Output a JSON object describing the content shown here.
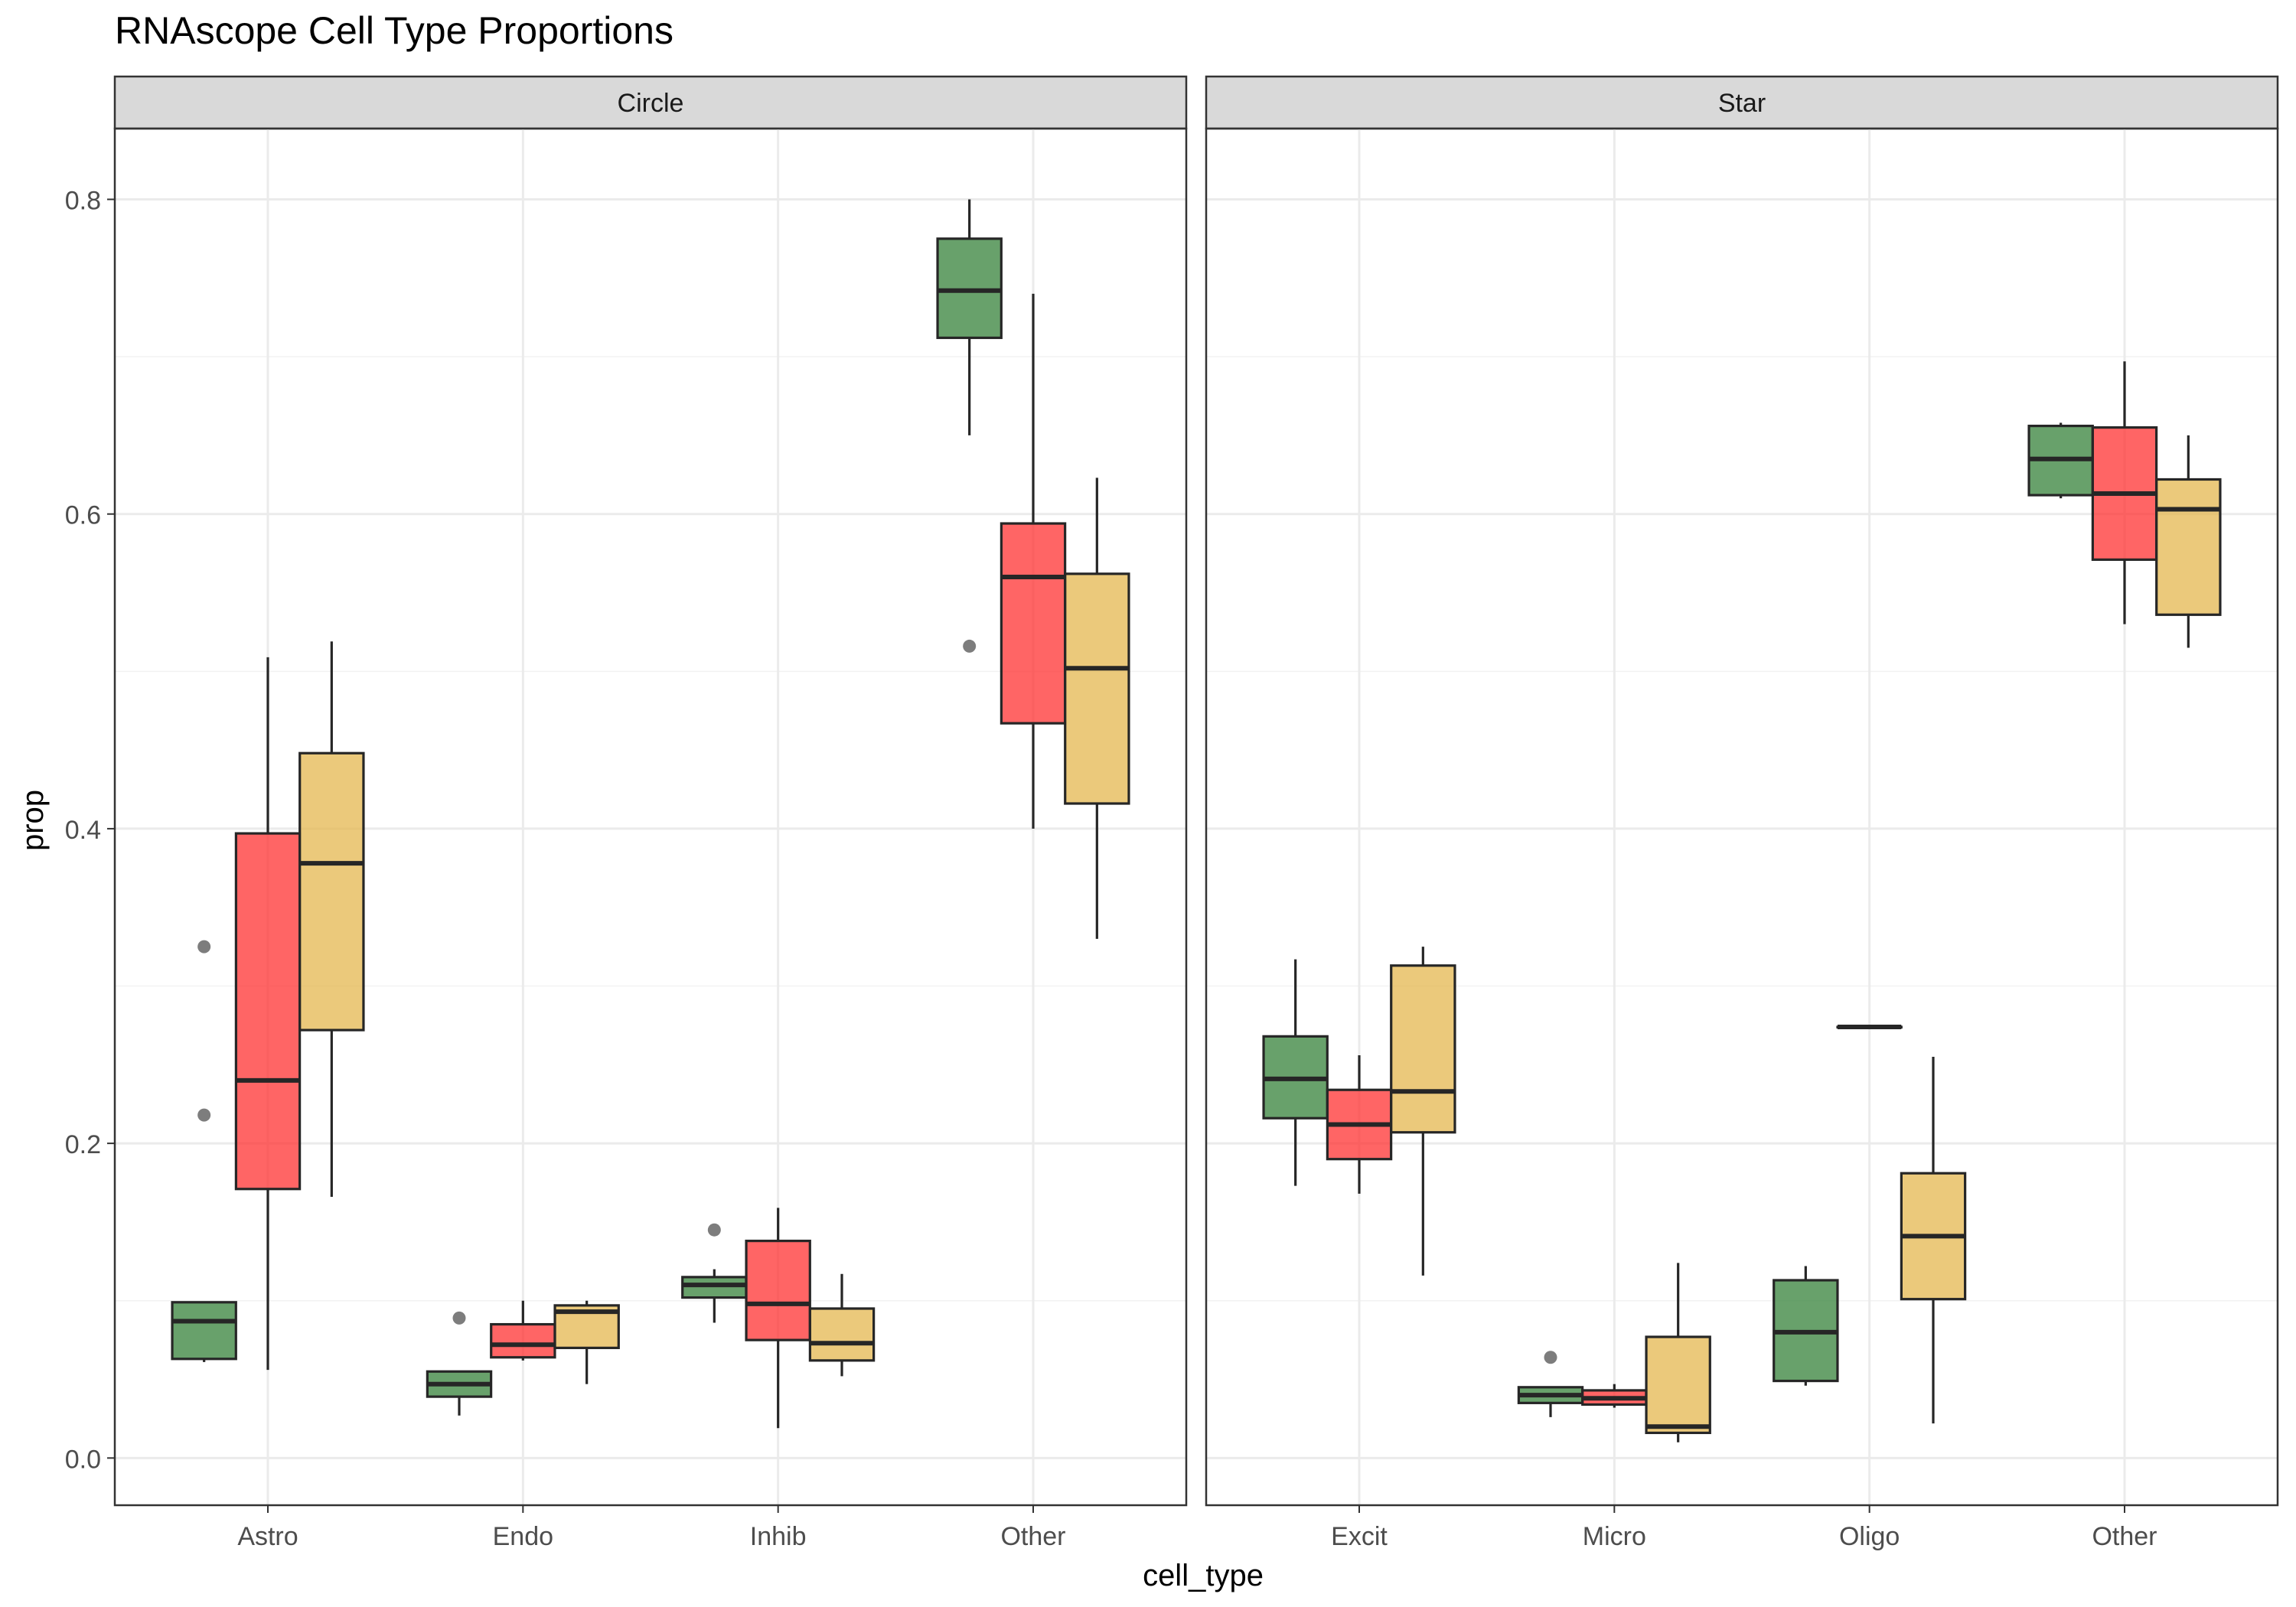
{
  "chart_data": {
    "type": "boxplot",
    "title": "RNAscope Cell Type Proportions",
    "xlabel": "cell_type",
    "ylabel": "prop",
    "ylim": [
      -0.03,
      0.845
    ],
    "y_ticks": [
      "0.0",
      "0.2",
      "0.4",
      "0.6",
      "0.8"
    ],
    "y_tick_values": [
      0.0,
      0.2,
      0.4,
      0.6,
      0.8
    ],
    "grid": true,
    "legend": "none",
    "group_colors": [
      "#2E7D32",
      "#FF2A2A",
      "#E3B448"
    ],
    "panels": [
      {
        "title": "Circle",
        "categories": [
          "Astro",
          "Endo",
          "Inhib",
          "Other"
        ],
        "boxes": [
          {
            "category": "Astro",
            "group": 0,
            "min": 0.061,
            "q1": 0.063,
            "median": 0.087,
            "q3": 0.099,
            "max": 0.099,
            "outliers": [
              0.218,
              0.325
            ]
          },
          {
            "category": "Astro",
            "group": 1,
            "min": 0.056,
            "q1": 0.171,
            "median": 0.24,
            "q3": 0.397,
            "max": 0.509,
            "outliers": []
          },
          {
            "category": "Astro",
            "group": 2,
            "min": 0.166,
            "q1": 0.272,
            "median": 0.378,
            "q3": 0.448,
            "max": 0.519,
            "outliers": []
          },
          {
            "category": "Endo",
            "group": 0,
            "min": 0.027,
            "q1": 0.039,
            "median": 0.047,
            "q3": 0.055,
            "max": 0.055,
            "outliers": [
              0.089
            ]
          },
          {
            "category": "Endo",
            "group": 1,
            "min": 0.062,
            "q1": 0.064,
            "median": 0.072,
            "q3": 0.085,
            "max": 0.1,
            "outliers": []
          },
          {
            "category": "Endo",
            "group": 2,
            "min": 0.047,
            "q1": 0.07,
            "median": 0.093,
            "q3": 0.097,
            "max": 0.1,
            "outliers": []
          },
          {
            "category": "Inhib",
            "group": 0,
            "min": 0.086,
            "q1": 0.102,
            "median": 0.11,
            "q3": 0.115,
            "max": 0.12,
            "outliers": [
              0.145
            ]
          },
          {
            "category": "Inhib",
            "group": 1,
            "min": 0.019,
            "q1": 0.075,
            "median": 0.098,
            "q3": 0.138,
            "max": 0.159,
            "outliers": []
          },
          {
            "category": "Inhib",
            "group": 2,
            "min": 0.052,
            "q1": 0.062,
            "median": 0.073,
            "q3": 0.095,
            "max": 0.117,
            "outliers": []
          },
          {
            "category": "Other",
            "group": 0,
            "min": 0.65,
            "q1": 0.712,
            "median": 0.742,
            "q3": 0.775,
            "max": 0.8,
            "outliers": [
              0.516
            ]
          },
          {
            "category": "Other",
            "group": 1,
            "min": 0.4,
            "q1": 0.467,
            "median": 0.56,
            "q3": 0.594,
            "max": 0.74,
            "outliers": []
          },
          {
            "category": "Other",
            "group": 2,
            "min": 0.33,
            "q1": 0.416,
            "median": 0.502,
            "q3": 0.562,
            "max": 0.623,
            "outliers": []
          }
        ]
      },
      {
        "title": "Star",
        "categories": [
          "Excit",
          "Micro",
          "Oligo",
          "Other"
        ],
        "boxes": [
          {
            "category": "Excit",
            "group": 0,
            "min": 0.173,
            "q1": 0.216,
            "median": 0.241,
            "q3": 0.268,
            "max": 0.317,
            "outliers": []
          },
          {
            "category": "Excit",
            "group": 1,
            "min": 0.168,
            "q1": 0.19,
            "median": 0.212,
            "q3": 0.234,
            "max": 0.256,
            "outliers": []
          },
          {
            "category": "Excit",
            "group": 2,
            "min": 0.116,
            "q1": 0.207,
            "median": 0.233,
            "q3": 0.313,
            "max": 0.325,
            "outliers": []
          },
          {
            "category": "Micro",
            "group": 0,
            "min": 0.026,
            "q1": 0.035,
            "median": 0.04,
            "q3": 0.045,
            "max": 0.045,
            "outliers": [
              0.064
            ]
          },
          {
            "category": "Micro",
            "group": 1,
            "min": 0.032,
            "q1": 0.034,
            "median": 0.038,
            "q3": 0.043,
            "max": 0.047,
            "outliers": []
          },
          {
            "category": "Micro",
            "group": 2,
            "min": 0.01,
            "q1": 0.016,
            "median": 0.02,
            "q3": 0.077,
            "max": 0.124,
            "outliers": []
          },
          {
            "category": "Oligo",
            "group": 0,
            "min": 0.046,
            "q1": 0.049,
            "median": 0.08,
            "q3": 0.113,
            "max": 0.122,
            "outliers": []
          },
          {
            "category": "Oligo",
            "group": 1,
            "min": 0.274,
            "q1": 0.274,
            "median": 0.274,
            "q3": 0.274,
            "max": 0.274,
            "outliers": []
          },
          {
            "category": "Oligo",
            "group": 2,
            "min": 0.022,
            "q1": 0.101,
            "median": 0.141,
            "q3": 0.181,
            "max": 0.255,
            "outliers": []
          },
          {
            "category": "Other",
            "group": 0,
            "min": 0.61,
            "q1": 0.612,
            "median": 0.635,
            "q3": 0.656,
            "max": 0.658,
            "outliers": []
          },
          {
            "category": "Other",
            "group": 1,
            "min": 0.53,
            "q1": 0.571,
            "median": 0.613,
            "q3": 0.655,
            "max": 0.697,
            "outliers": []
          },
          {
            "category": "Other",
            "group": 2,
            "min": 0.515,
            "q1": 0.536,
            "median": 0.603,
            "q3": 0.622,
            "max": 0.65,
            "outliers": []
          }
        ]
      }
    ]
  }
}
